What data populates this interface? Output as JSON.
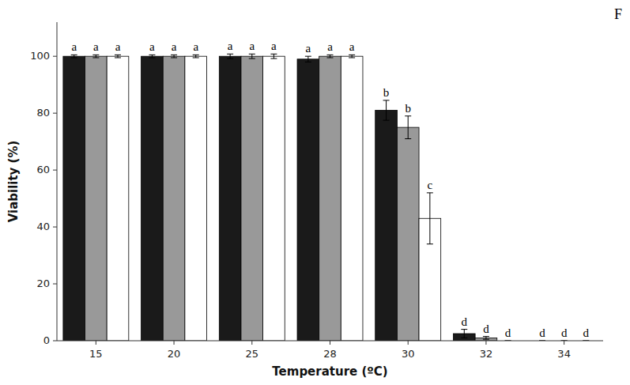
{
  "chart_data": {
    "type": "bar",
    "xlabel": "Temperature (ºC)",
    "ylabel": "Viability (%)",
    "categories": [
      "15",
      "20",
      "25",
      "28",
      "30",
      "32",
      "34"
    ],
    "series": [
      {
        "color": "#1a1a1a",
        "values": [
          100,
          100,
          100,
          99,
          81,
          2.5,
          0
        ],
        "errors": [
          0.5,
          0.5,
          0.8,
          1.0,
          3.5,
          1.5,
          0.0
        ],
        "letter_labels": [
          "a",
          "a",
          "a",
          "a",
          "b",
          "d",
          "d"
        ]
      },
      {
        "color": "#999999",
        "values": [
          100,
          100,
          100,
          100,
          75,
          1.0,
          0
        ],
        "errors": [
          0.5,
          0.5,
          0.8,
          0.5,
          4.0,
          0.5,
          0.0
        ],
        "letter_labels": [
          "a",
          "a",
          "a",
          "a",
          "b",
          "d",
          "d"
        ]
      },
      {
        "color": "#ffffff",
        "values": [
          100,
          100,
          100,
          100,
          43,
          0,
          0
        ],
        "errors": [
          0.5,
          0.5,
          0.8,
          0.5,
          9.0,
          0.0,
          0.0
        ],
        "letter_labels": [
          "a",
          "a",
          "a",
          "a",
          "c",
          "d",
          "d"
        ]
      }
    ],
    "ylim": [
      0,
      112
    ],
    "yticks": [
      0,
      20,
      40,
      60,
      80,
      100
    ],
    "grid": false,
    "annotations": [
      "F"
    ]
  }
}
